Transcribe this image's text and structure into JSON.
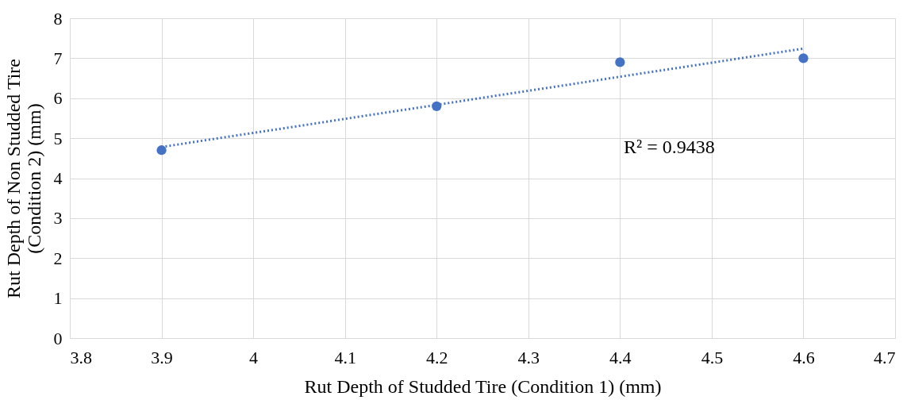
{
  "chart_data": {
    "type": "scatter",
    "xlabel": "Rut Depth of Studded Tire (Condition 1) (mm)",
    "ylabel": "Rut Depth of  Non Studded Tire\n(Condition 2) (mm)",
    "x": [
      3.9,
      4.2,
      4.4,
      4.6
    ],
    "series": [
      {
        "color": "#4472c4",
        "values": [
          4.7,
          5.8,
          6.9,
          7.0
        ],
        "marker": "circle"
      },
      {
        "type": "line",
        "color": "#4472c4",
        "x": [
          3.9,
          4.6
        ],
        "values": [
          4.78,
          7.24
        ],
        "line_style": "dotted",
        "marker": "none"
      }
    ],
    "xlim": [
      3.8,
      4.7
    ],
    "xticks": [
      3.8,
      3.9,
      {
        "value": 4.0,
        "label": "4"
      },
      4.1,
      4.2,
      4.3,
      4.4,
      4.5,
      4.6,
      4.7
    ],
    "ylim": [
      0,
      8
    ],
    "yticks": [
      0,
      1,
      2,
      3,
      4,
      5,
      6,
      7,
      8
    ],
    "grid": true,
    "annotations": [
      "R² = 0.9438"
    ]
  }
}
